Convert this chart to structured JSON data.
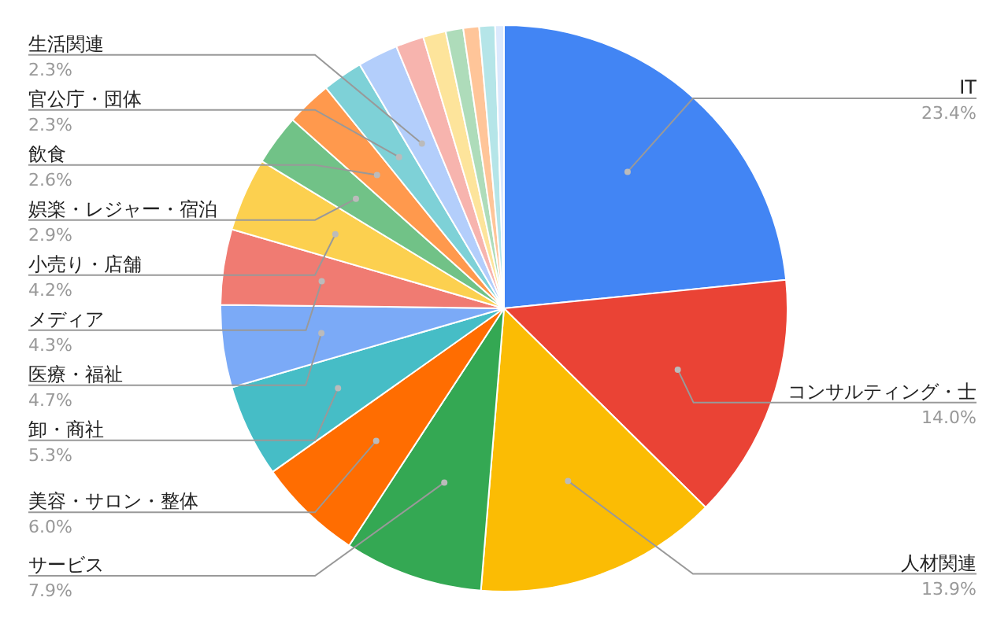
{
  "chart_data": {
    "type": "pie",
    "categories": [
      "IT",
      "コンサルティング・士",
      "人材関連",
      "サービス",
      "美容・サロン・整体",
      "卸・商社",
      "医療・福祉",
      "メディア",
      "小売り・店舗",
      "娯楽・レジャー・宿泊",
      "飲食",
      "官公庁・団体",
      "生活関連",
      null,
      null,
      null,
      null,
      null,
      null
    ],
    "values": [
      23.4,
      14.0,
      13.9,
      7.9,
      6.0,
      5.3,
      4.7,
      4.3,
      4.2,
      2.9,
      2.6,
      2.3,
      2.3,
      1.6,
      1.3,
      1.0,
      0.9,
      0.9,
      0.5
    ],
    "value_labels": [
      "23.4%",
      "14.0%",
      "13.9%",
      "7.9%",
      "6.0%",
      "5.3%",
      "4.7%",
      "4.3%",
      "4.2%",
      "2.9%",
      "2.6%",
      "2.3%",
      "2.3%",
      null,
      null,
      null,
      null,
      null,
      null
    ],
    "colors": [
      "#4285f4",
      "#ea4335",
      "#fbbc04",
      "#34a853",
      "#ff6d01",
      "#46bdc6",
      "#7baaf7",
      "#f07b72",
      "#fcd04f",
      "#71c287",
      "#ff994d",
      "#7ed1d7",
      "#b3cefb",
      "#f7b4ae",
      "#fde49b",
      "#aedcba",
      "#ffc599",
      "#b5e5e8",
      "#dbe9fd"
    ]
  }
}
